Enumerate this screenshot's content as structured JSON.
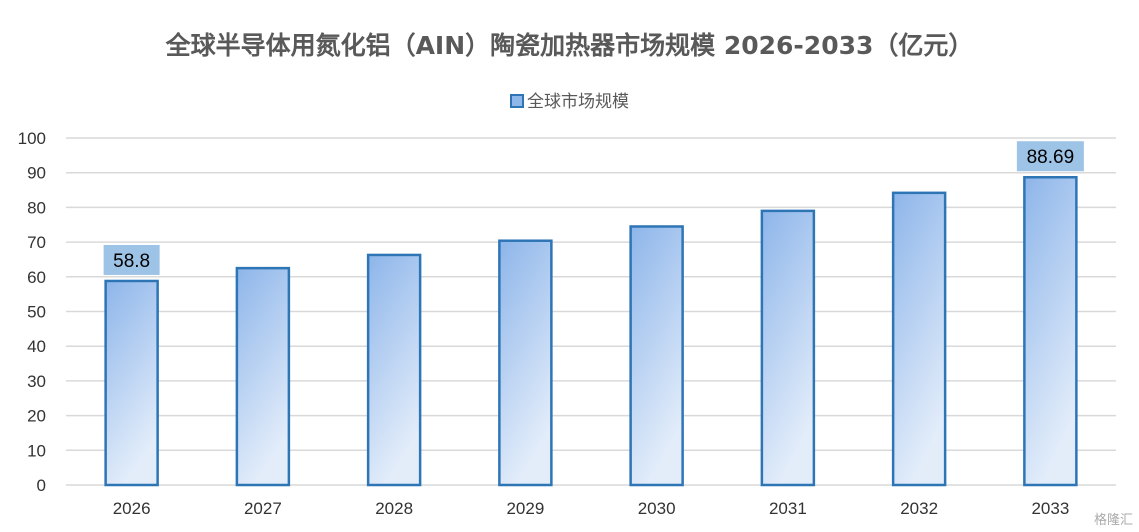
{
  "chart_data": {
    "type": "bar",
    "title": "全球半导体用氮化铝（AIN）陶瓷加热器市场规模 2026-2033（亿元）",
    "categories": [
      "2026",
      "2027",
      "2028",
      "2029",
      "2030",
      "2031",
      "2032",
      "2033"
    ],
    "series": [
      {
        "name": "全球市场规模",
        "values": [
          58.8,
          62.5,
          66.3,
          70.4,
          74.5,
          79.0,
          84.2,
          88.69
        ]
      }
    ],
    "data_labels": [
      {
        "index": 0,
        "text": "58.8"
      },
      {
        "index": 7,
        "text": "88.69"
      }
    ],
    "ylim": [
      0,
      100
    ],
    "yticks": [
      0,
      10,
      20,
      30,
      40,
      50,
      60,
      70,
      80,
      90,
      100
    ],
    "grid": true,
    "legend_position": "top-center",
    "colors": {
      "bar_top": "#8db5ea",
      "bar_bottom": "#e3edfa",
      "bar_border": "#2e75b6",
      "label_box": "#9dc3e6",
      "grid": "#d9d9d9"
    }
  },
  "watermark": "格隆汇"
}
